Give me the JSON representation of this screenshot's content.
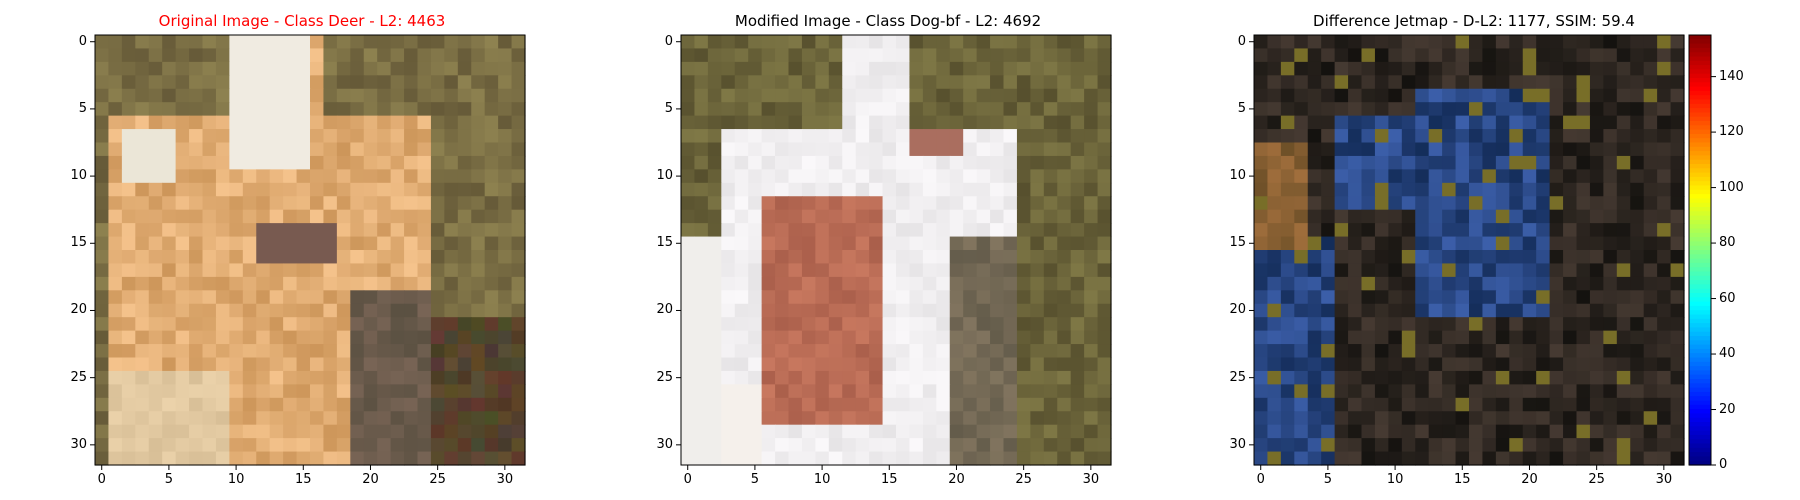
{
  "panels": [
    {
      "name": "original",
      "title": "Original Image - Class Deer - L2: 4463",
      "title_color": "#ff0000"
    },
    {
      "name": "modified",
      "title": "Modified Image - Class Dog-bf - L2: 4692",
      "title_color": "#000000"
    },
    {
      "name": "difference",
      "title": "Difference Jetmap - D-L2: 1177, SSIM: 59.4",
      "title_color": "#000000"
    }
  ],
  "axis": {
    "x_ticks": [
      "0",
      "5",
      "10",
      "15",
      "20",
      "25",
      "30"
    ],
    "y_ticks": [
      "0",
      "5",
      "10",
      "15",
      "20",
      "25",
      "30"
    ],
    "grid_size": 32
  },
  "colorbar": {
    "ticks": [
      "0",
      "20",
      "40",
      "60",
      "80",
      "100",
      "120",
      "140"
    ],
    "min": 0,
    "max": 155,
    "colormap": "jet"
  },
  "colors": {
    "title_highlight": "#ff0000",
    "text": "#000000"
  }
}
